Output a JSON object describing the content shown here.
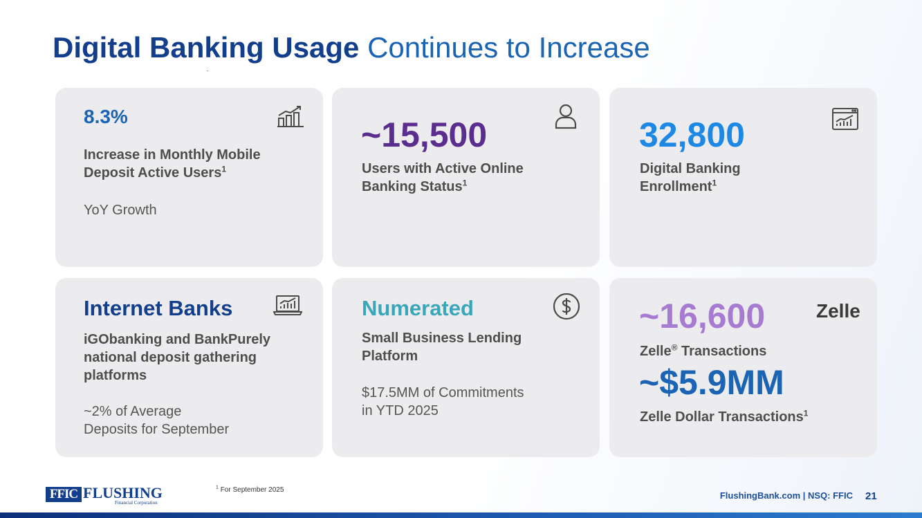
{
  "title": {
    "bold": "Digital Banking Usage",
    "regular": "Continues to Increase"
  },
  "cards": [
    {
      "value": "8.3%",
      "label_line1": "Increase in Monthly Mobile",
      "label_line2": "Deposit Active Users",
      "label_sup": "1",
      "note": "YoY Growth",
      "icon": "bar-chart-growth-icon"
    },
    {
      "value": "~15,500",
      "label_line1": "Users with Active Online",
      "label_line2": "Banking Status",
      "label_sup": "1",
      "icon": "user-icon",
      "value_color": "#5b2d8e"
    },
    {
      "value": "32,800",
      "label_line1": "Digital Banking",
      "label_line2": "Enrollment",
      "label_sup": "1",
      "icon": "browser-analytics-icon",
      "value_color": "#1e88e5"
    },
    {
      "value": "Internet Banks",
      "label_line1": "iGObanking and BankPurely",
      "label_line2": "national deposit gathering",
      "label_line3": "platforms",
      "note_line1": "~2% of Average",
      "note_line2": "Deposits for September",
      "icon": "laptop-chart-icon",
      "value_color": "#123e8c"
    },
    {
      "value": "Numerated",
      "label_line1": "Small Business Lending",
      "label_line2": "Platform",
      "note_line1": "$17.5MM of Commitments",
      "note_line2": "in YTD 2025",
      "icon": "dollar-circle-icon",
      "value_color": "#3aa6b9"
    },
    {
      "value": "~16,600",
      "label": "Zelle",
      "label_reg": "®",
      "label_rest": " Transactions",
      "value2": "~$5.9MM",
      "label2": "Zelle Dollar Transactions",
      "label2_sup": "1",
      "brand": "Zelle",
      "value_color": "#a77bd1",
      "value2_color": "#1a64b3"
    }
  ],
  "footer": {
    "logo_box": "FFIC",
    "logo_word": "FLUSHING",
    "logo_sub": "Financial Corporation",
    "footnote_sup": "1",
    "footnote": "For September 2025",
    "site": "FlushingBank.com  |  NSQ: FFIC",
    "page": "21"
  }
}
